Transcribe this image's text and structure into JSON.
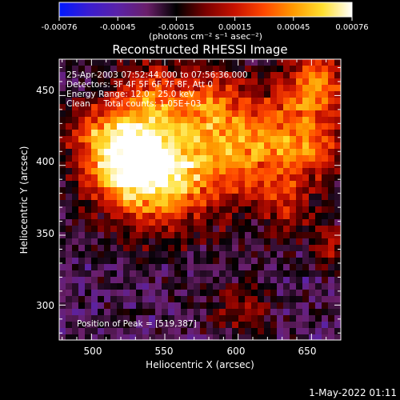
{
  "colorbar": {
    "tick_labels": [
      "-0.00076",
      "-0.00045",
      "-0.00015",
      "0.00015",
      "0.00045",
      "0.00076"
    ],
    "unit_label": "(photons cm⁻² s⁻¹ asec⁻²)",
    "colormap": [
      "#0018ff",
      "#3a1dd0",
      "#5a22a8",
      "#6a1f6a",
      "#000000",
      "#7a0000",
      "#c81200",
      "#ff4800",
      "#ff9a00",
      "#ffe030",
      "#ffffff"
    ]
  },
  "image": {
    "title": "Reconstructed RHESSI Image",
    "info_lines": [
      "25-Apr-2003 07:52:44.000 to 07:56:36.000",
      "Detectors: 3F 4F 5F 6F 7F 8F, Att 0",
      "Energy Range: 12.0 - 25.0 keV",
      "Clean     Total counts: 1.05E+03"
    ],
    "peak_label": "Position of Peak = [519,387]",
    "peak": [
      519,
      387
    ]
  },
  "axes": {
    "xlabel": "Heliocentric X (arcsec)",
    "ylabel": "Heliocentric Y (arcsec)",
    "xlim": [
      478,
      670
    ],
    "ylim": [
      275,
      476
    ],
    "xticks": [
      "500",
      "550",
      "600",
      "650"
    ],
    "yticks": [
      "300",
      "350",
      "400",
      "450"
    ]
  },
  "footer": {
    "timestamp": "1-May-2022 01:11"
  }
}
